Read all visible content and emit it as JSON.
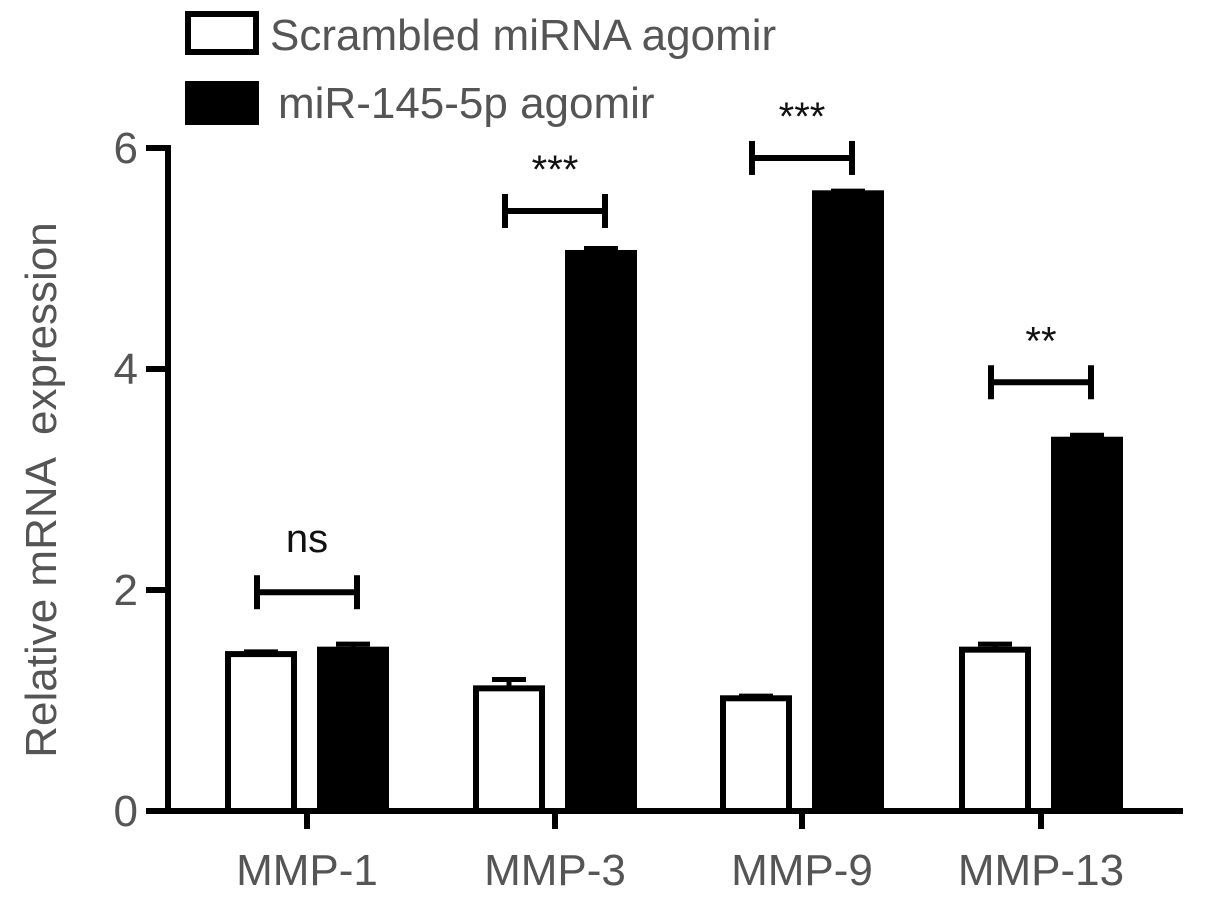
{
  "chart_data": {
    "type": "bar",
    "categories": [
      "MMP-1",
      "MMP-3",
      "MMP-9",
      "MMP-13"
    ],
    "series": [
      {
        "name": "Scrambled miRNA agomir",
        "values": [
          1.42,
          1.11,
          1.02,
          1.46
        ],
        "errors": [
          0.02,
          0.08,
          0.02,
          0.05
        ],
        "color": "#ffffff",
        "stroke": "#000000"
      },
      {
        "name": "miR-145-5p agomir",
        "values": [
          1.46,
          5.05,
          5.59,
          3.36
        ],
        "errors": [
          0.05,
          0.04,
          0.02,
          0.04
        ],
        "color": "#000000",
        "stroke": "#000000"
      }
    ],
    "significance": [
      {
        "category": "MMP-1",
        "label": "ns",
        "level": 1.98
      },
      {
        "category": "MMP-3",
        "label": "***",
        "level": 5.43
      },
      {
        "category": "MMP-9",
        "label": "***",
        "level": 5.91
      },
      {
        "category": "MMP-13",
        "label": "**",
        "level": 3.88
      }
    ],
    "title": "",
    "xlabel": "",
    "ylabel": "Relative mRNA  expression",
    "ylim": [
      0,
      6
    ],
    "yticks": [
      "0",
      "2",
      "4",
      "6"
    ],
    "grid": false,
    "legend_position": "top-left"
  }
}
